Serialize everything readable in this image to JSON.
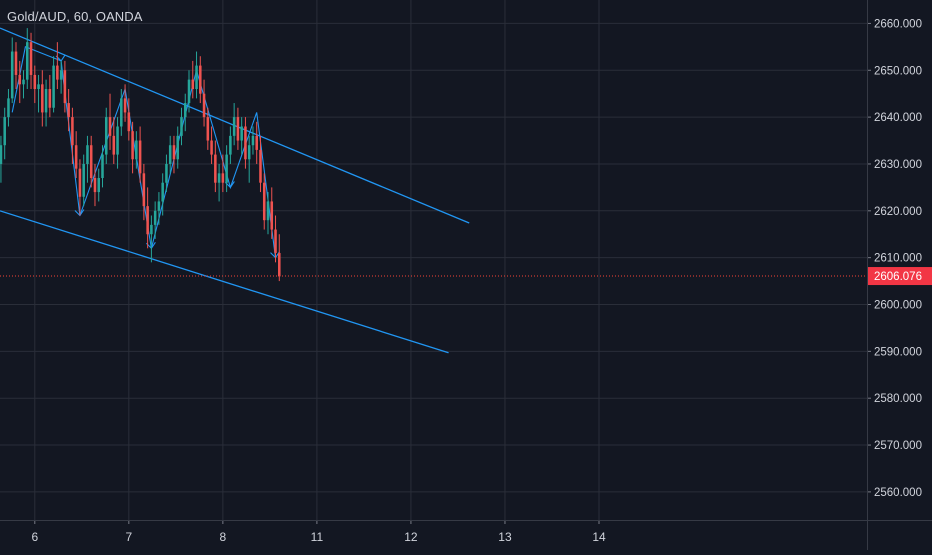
{
  "header": {
    "symbol_label": "Gold/AUD, 60, OANDA"
  },
  "colors": {
    "background": "#131722",
    "grid": "#2a2e39",
    "axis_text": "#d1d4dc",
    "up_candle": "#26a69a",
    "down_candle": "#ef5350",
    "trendline": "#2196f3",
    "price_line": "#f44336",
    "price_badge": "#f23645"
  },
  "chart_data": {
    "type": "candlestick",
    "title": "Gold/AUD, 60, OANDA",
    "xlabel": "",
    "ylabel": "",
    "ylim": [
      2554,
      2665
    ],
    "xlim": [
      5.63,
      14.85
    ],
    "y_ticks": [
      "2660.000",
      "2650.000",
      "2640.000",
      "2630.000",
      "2620.000",
      "2610.000",
      "2600.000",
      "2590.000",
      "2580.000",
      "2570.000",
      "2560.000"
    ],
    "x_ticks": [
      {
        "label": "6",
        "value": 6
      },
      {
        "label": "7",
        "value": 7
      },
      {
        "label": "8",
        "value": 8
      },
      {
        "label": "11",
        "value": 9
      },
      {
        "label": "12",
        "value": 10
      },
      {
        "label": "13",
        "value": 11
      },
      {
        "label": "14",
        "value": 12
      }
    ],
    "last_price": 2606.076,
    "last_price_label": "2606.076",
    "grid": true,
    "candle_interval_days": 0.04167,
    "candles": [
      [
        5.64,
        2630,
        2636,
        2626,
        2634
      ],
      [
        5.68,
        2634,
        2642,
        2631,
        2640
      ],
      [
        5.72,
        2640,
        2646,
        2638,
        2644
      ],
      [
        5.76,
        2644,
        2657,
        2643,
        2654
      ],
      [
        5.8,
        2654,
        2656,
        2646,
        2649
      ],
      [
        5.84,
        2649,
        2652,
        2643,
        2647
      ],
      [
        5.88,
        2647,
        2650,
        2644,
        2648
      ],
      [
        5.92,
        2648,
        2659,
        2646,
        2656
      ],
      [
        5.96,
        2656,
        2658,
        2646,
        2649
      ],
      [
        6.0,
        2649,
        2651,
        2643,
        2646
      ],
      [
        6.04,
        2646,
        2649,
        2641,
        2647
      ],
      [
        6.08,
        2647,
        2650,
        2638,
        2641
      ],
      [
        6.12,
        2641,
        2648,
        2638,
        2646
      ],
      [
        6.16,
        2646,
        2649,
        2640,
        2642
      ],
      [
        6.2,
        2642,
        2653,
        2641,
        2651
      ],
      [
        6.24,
        2651,
        2656,
        2646,
        2648
      ],
      [
        6.28,
        2648,
        2652,
        2645,
        2650
      ],
      [
        6.32,
        2650,
        2652,
        2641,
        2643
      ],
      [
        6.36,
        2643,
        2646,
        2637,
        2640
      ],
      [
        6.4,
        2640,
        2642,
        2630,
        2634
      ],
      [
        6.44,
        2634,
        2637,
        2627,
        2629
      ],
      [
        6.48,
        2629,
        2631,
        2619,
        2623
      ],
      [
        6.52,
        2623,
        2632,
        2621,
        2630
      ],
      [
        6.56,
        2630,
        2636,
        2626,
        2634
      ],
      [
        6.6,
        2634,
        2636,
        2625,
        2627
      ],
      [
        6.64,
        2627,
        2630,
        2621,
        2624
      ],
      [
        6.68,
        2624,
        2629,
        2622,
        2627
      ],
      [
        6.72,
        2627,
        2634,
        2625,
        2632
      ],
      [
        6.76,
        2632,
        2642,
        2630,
        2640
      ],
      [
        6.8,
        2640,
        2645,
        2633,
        2636
      ],
      [
        6.84,
        2636,
        2640,
        2630,
        2632
      ],
      [
        6.88,
        2632,
        2640,
        2629,
        2638
      ],
      [
        6.92,
        2638,
        2646,
        2636,
        2644
      ],
      [
        6.96,
        2644,
        2647,
        2639,
        2641
      ],
      [
        7.0,
        2641,
        2644,
        2635,
        2637
      ],
      [
        7.04,
        2637,
        2639,
        2628,
        2631
      ],
      [
        7.08,
        2631,
        2637,
        2629,
        2635
      ],
      [
        7.12,
        2635,
        2638,
        2626,
        2628
      ],
      [
        7.16,
        2628,
        2630,
        2618,
        2621
      ],
      [
        7.2,
        2621,
        2625,
        2612,
        2615
      ],
      [
        7.24,
        2615,
        2619,
        2609,
        2617
      ],
      [
        7.28,
        2617,
        2622,
        2614,
        2620
      ],
      [
        7.32,
        2620,
        2624,
        2617,
        2622
      ],
      [
        7.36,
        2622,
        2628,
        2619,
        2626
      ],
      [
        7.4,
        2626,
        2632,
        2624,
        2630
      ],
      [
        7.44,
        2630,
        2636,
        2628,
        2634
      ],
      [
        7.48,
        2634,
        2636,
        2628,
        2631
      ],
      [
        7.52,
        2631,
        2638,
        2629,
        2636
      ],
      [
        7.56,
        2636,
        2642,
        2634,
        2640
      ],
      [
        7.6,
        2640,
        2645,
        2637,
        2643
      ],
      [
        7.64,
        2643,
        2650,
        2641,
        2648
      ],
      [
        7.68,
        2648,
        2652,
        2644,
        2646
      ],
      [
        7.72,
        2646,
        2654,
        2644,
        2651
      ],
      [
        7.76,
        2651,
        2653,
        2643,
        2645
      ],
      [
        7.8,
        2645,
        2648,
        2638,
        2640
      ],
      [
        7.84,
        2640,
        2642,
        2633,
        2635
      ],
      [
        7.88,
        2635,
        2638,
        2630,
        2632
      ],
      [
        7.92,
        2632,
        2635,
        2624,
        2626
      ],
      [
        7.96,
        2626,
        2630,
        2622,
        2628
      ],
      [
        8.0,
        2628,
        2632,
        2624,
        2626
      ],
      [
        8.04,
        2626,
        2634,
        2624,
        2632
      ],
      [
        8.08,
        2632,
        2638,
        2630,
        2636
      ],
      [
        8.12,
        2636,
        2643,
        2634,
        2640
      ],
      [
        8.16,
        2640,
        2642,
        2633,
        2635
      ],
      [
        8.2,
        2635,
        2640,
        2632,
        2638
      ],
      [
        8.24,
        2638,
        2640,
        2629,
        2631
      ],
      [
        8.28,
        2631,
        2636,
        2626,
        2634
      ],
      [
        8.32,
        2634,
        2638,
        2632,
        2636
      ],
      [
        8.36,
        2636,
        2639,
        2630,
        2633
      ],
      [
        8.4,
        2633,
        2636,
        2624,
        2626
      ],
      [
        8.44,
        2626,
        2628,
        2616,
        2618
      ],
      [
        8.48,
        2618,
        2624,
        2615,
        2622
      ],
      [
        8.52,
        2622,
        2625,
        2614,
        2616
      ],
      [
        8.56,
        2616,
        2619,
        2609,
        2611
      ],
      [
        8.6,
        2611,
        2615,
        2605,
        2606
      ]
    ],
    "trendlines": [
      {
        "points": [
          [
            5.63,
            2659.0
          ],
          [
            10.62,
            2617.4
          ]
        ]
      },
      {
        "points": [
          [
            5.63,
            2620.0
          ],
          [
            10.4,
            2589.7
          ]
        ]
      }
    ],
    "zigzag": [
      [
        5.76,
        2641
      ],
      [
        5.9,
        2655
      ],
      [
        6.28,
        2652
      ],
      [
        6.48,
        2619
      ],
      [
        6.96,
        2646
      ],
      [
        7.24,
        2612
      ],
      [
        7.72,
        2650
      ],
      [
        8.08,
        2625
      ],
      [
        8.36,
        2641
      ],
      [
        8.56,
        2610
      ]
    ]
  }
}
